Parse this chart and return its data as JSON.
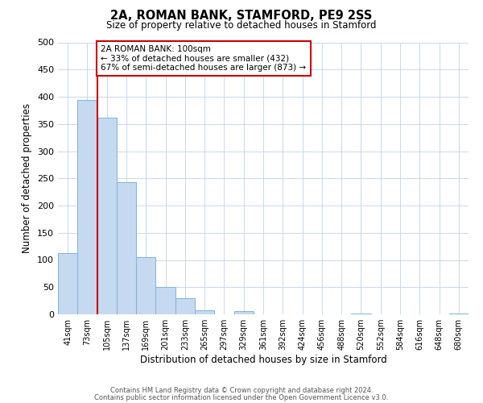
{
  "title": "2A, ROMAN BANK, STAMFORD, PE9 2SS",
  "subtitle": "Size of property relative to detached houses in Stamford",
  "xlabel": "Distribution of detached houses by size in Stamford",
  "ylabel": "Number of detached properties",
  "bar_labels": [
    "41sqm",
    "73sqm",
    "105sqm",
    "137sqm",
    "169sqm",
    "201sqm",
    "233sqm",
    "265sqm",
    "297sqm",
    "329sqm",
    "361sqm",
    "392sqm",
    "424sqm",
    "456sqm",
    "488sqm",
    "520sqm",
    "552sqm",
    "584sqm",
    "616sqm",
    "648sqm",
    "680sqm"
  ],
  "bar_values": [
    112,
    394,
    362,
    243,
    105,
    50,
    30,
    8,
    0,
    6,
    0,
    0,
    0,
    0,
    0,
    2,
    0,
    0,
    0,
    0,
    2
  ],
  "bar_color": "#c5d9f0",
  "bar_edge_color": "#7fb3d9",
  "vline_color": "#cc0000",
  "ylim": [
    0,
    500
  ],
  "yticks": [
    0,
    50,
    100,
    150,
    200,
    250,
    300,
    350,
    400,
    450,
    500
  ],
  "annotation_title": "2A ROMAN BANK: 100sqm",
  "annotation_line1": "← 33% of detached houses are smaller (432)",
  "annotation_line2": "67% of semi-detached houses are larger (873) →",
  "annotation_box_color": "#ffffff",
  "annotation_box_edge_color": "#cc0000",
  "footer_line1": "Contains HM Land Registry data © Crown copyright and database right 2024.",
  "footer_line2": "Contains public sector information licensed under the Open Government Licence v3.0.",
  "background_color": "#ffffff",
  "grid_color": "#c8d8ec"
}
